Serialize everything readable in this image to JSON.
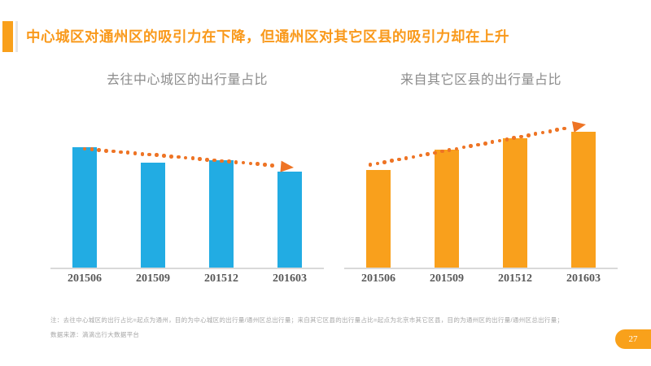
{
  "slide": {
    "title": "中心城区对通州区的吸引力在下降，但通州区对其它区县的吸引力却在上升",
    "title_color": "#F9991B",
    "accent_color": "#F9A01B",
    "page_number": "27",
    "note_line1": "注：去往中心城区的出行占比=起点为通州，目的为中心城区的出行量/通州区总出行量；来自其它区县的出行量占比=起点为北京市其它区县，目的为通州区的出行量/通州区总出行量；",
    "note_line2": "数据来源：滴滴出行大数据平台"
  },
  "chart_data": [
    {
      "type": "bar",
      "title": "去往中心城区的出行量占比",
      "categories": [
        "201506",
        "201509",
        "201512",
        "201603"
      ],
      "values": [
        1.0,
        0.87,
        0.89,
        0.8
      ],
      "value_scale": "relative — y-axis unlabeled, values normalized to 201506 bar",
      "bar_color": "#22ACE3",
      "trend": "declining dotted arrow",
      "trend_color": "#EE7425",
      "xlabel": "",
      "ylabel": "",
      "legend": false,
      "grid": false,
      "axis_color": "#D9D9D9",
      "tick_color": "#595959"
    },
    {
      "type": "bar",
      "title": "来自其它区县的出行量占比",
      "categories": [
        "201506",
        "201509",
        "201512",
        "201603"
      ],
      "values": [
        0.72,
        0.87,
        0.95,
        1.0
      ],
      "value_scale": "relative — y-axis unlabeled, values normalized to 201603 bar",
      "bar_color": "#F9A01C",
      "trend": "rising dotted arrow",
      "trend_color": "#EE7425",
      "xlabel": "",
      "ylabel": "",
      "legend": false,
      "grid": false,
      "axis_color": "#D9D9D9",
      "tick_color": "#595959"
    }
  ]
}
